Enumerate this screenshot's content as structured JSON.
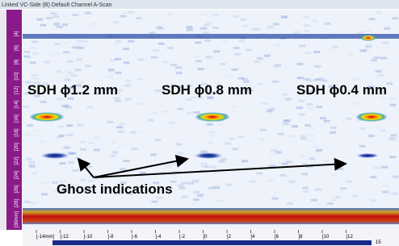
{
  "window": {
    "title": "Linked VC-Side (B) Default Channel A-Scan"
  },
  "annotations": {
    "labels": [
      "SDH ϕ1.2 mm",
      "SDH ϕ0.8 mm",
      "SDH ϕ0.4 mm"
    ],
    "ghost": "Ghost indications"
  },
  "left_ruler": {
    "ticks": [
      "[4]",
      "[6]",
      "[8]",
      "[10]",
      "[12]",
      "[14]",
      "[16]",
      "[18]",
      "[20]",
      "[22]",
      "[24]",
      "[26]",
      "[28]"
    ],
    "unit": "[30mm]"
  },
  "bottom_ruler": {
    "ticks": [
      "[-14mm]",
      "[-12",
      "[-10",
      "[-8",
      "[-6",
      "[-4",
      "[-2",
      "[0",
      "[2",
      "[4",
      "[6",
      "[8",
      "[10",
      "[12"
    ],
    "end": "15"
  }
}
